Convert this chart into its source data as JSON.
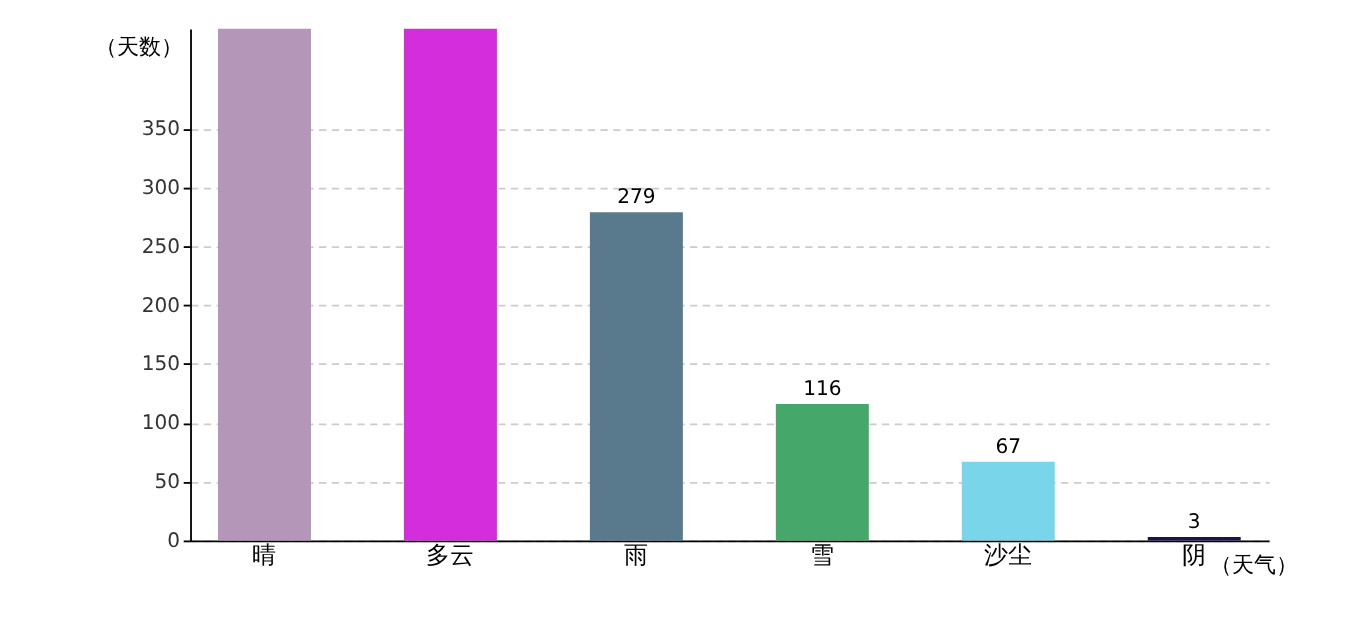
{
  "chart_data": {
    "type": "bar",
    "xlabel": "（天气）",
    "ylabel": "（天数）",
    "categories": [
      "晴",
      "多云",
      "雨",
      "雪",
      "沙尘",
      "阴"
    ],
    "values": [
      435,
      435,
      279,
      116,
      67,
      3
    ],
    "colors": [
      "#b497b8",
      "#d42ddb",
      "#587a8c",
      "#45a86a",
      "#79d5ea",
      "#1a1448"
    ],
    "value_labels": [
      null,
      null,
      "279",
      "116",
      "67",
      "3"
    ],
    "ylim": [
      0,
      435
    ],
    "yticks": [
      0,
      50,
      100,
      150,
      200,
      250,
      300,
      350
    ],
    "grid": "y"
  }
}
